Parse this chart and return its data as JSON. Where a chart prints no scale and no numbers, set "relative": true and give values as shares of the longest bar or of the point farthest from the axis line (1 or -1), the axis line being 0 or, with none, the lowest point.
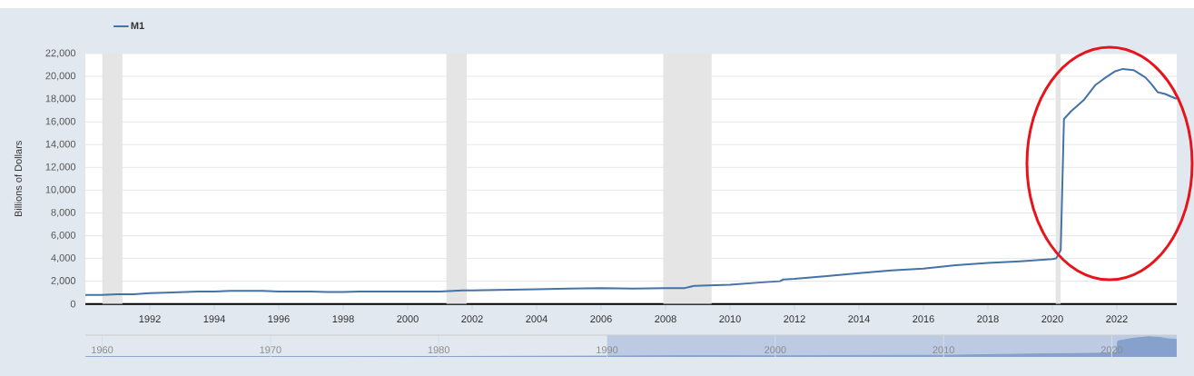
{
  "chart_data": [
    {
      "type": "line",
      "ylabel": "Billions of Dollars",
      "grid": "y",
      "legend": "top left",
      "xlim": [
        1990.0,
        2023.86
      ],
      "ylim": [
        0,
        22000
      ],
      "xticks": [
        1992,
        1994,
        1996,
        1998,
        2000,
        2002,
        2004,
        2006,
        2008,
        2010,
        2012,
        2014,
        2016,
        2018,
        2020,
        2022
      ],
      "yticks": [
        0,
        {
          "value": 2000,
          "label": "2,000"
        },
        {
          "value": 4000,
          "label": "4,000"
        },
        {
          "value": 6000,
          "label": "6,000"
        },
        {
          "value": 8000,
          "label": "8,000"
        },
        {
          "value": 10000,
          "label": "10,000"
        },
        {
          "value": 12000,
          "label": "12,000"
        },
        {
          "value": 14000,
          "label": "14,000"
        },
        {
          "value": 16000,
          "label": "16,000"
        },
        {
          "value": 18000,
          "label": "18,000"
        },
        {
          "value": 20000,
          "label": "20,000"
        },
        {
          "value": 22000,
          "label": "22,000"
        }
      ],
      "bands": [
        {
          "axis": "x",
          "from": 1990.52,
          "to": 1991.15,
          "color": "#e5e5e5"
        },
        {
          "axis": "x",
          "from": 2001.2,
          "to": 2001.83,
          "color": "#e5e5e5"
        },
        {
          "axis": "x",
          "from": 2007.93,
          "to": 2009.43,
          "color": "#e5e5e5"
        },
        {
          "axis": "x",
          "from": 2020.1,
          "to": 2020.26,
          "color": "#e5e5e5"
        }
      ],
      "x": [
        1990.0,
        1990.5,
        1991.0,
        1991.5,
        1992.0,
        1992.5,
        1993.0,
        1993.5,
        1994.0,
        1994.5,
        1995.0,
        1995.5,
        1996.0,
        1996.5,
        1997.0,
        1997.5,
        1998.0,
        1998.5,
        1999.0,
        1999.5,
        2000.0,
        2000.5,
        2001.0,
        2001.7,
        2002.0,
        2003.0,
        2004.0,
        2005.0,
        2006.0,
        2007.0,
        2008.0,
        2008.6,
        2008.9,
        2010.0,
        2011.0,
        2011.55,
        2011.65,
        2012.0,
        2013.0,
        2014.0,
        2015.0,
        2016.0,
        2017.0,
        2018.0,
        2019.0,
        2020.0,
        2020.12,
        2020.26,
        2020.36,
        2020.59,
        2020.97,
        2021.34,
        2021.58,
        2021.95,
        2022.19,
        2022.52,
        2022.89,
        2023.08,
        2023.27,
        2023.5,
        2023.83
      ],
      "series": [
        {
          "name": "M1",
          "color": "#4572a7",
          "values": [
            800,
            800,
            850,
            850,
            950,
            1000,
            1050,
            1100,
            1100,
            1150,
            1150,
            1150,
            1100,
            1100,
            1100,
            1050,
            1050,
            1100,
            1100,
            1100,
            1100,
            1100,
            1100,
            1200,
            1200,
            1250,
            1300,
            1350,
            1400,
            1350,
            1400,
            1400,
            1600,
            1700,
            1900,
            2000,
            2150,
            2200,
            2450,
            2700,
            2950,
            3100,
            3400,
            3600,
            3750,
            3950,
            4000,
            4750,
            16250,
            16950,
            17900,
            19250,
            19750,
            20450,
            20650,
            20550,
            19900,
            19300,
            18600,
            18450,
            18050
          ]
        }
      ]
    },
    {
      "type": "area",
      "relative": true,
      "grid": "x",
      "xlim": [
        1959.0,
        2023.86
      ],
      "xticks": [
        1960,
        1970,
        1980,
        1990,
        2000,
        2010,
        2020
      ],
      "bands": [
        {
          "axis": "x",
          "from": 1990.0,
          "to": 2023.86,
          "color": "#bccae3"
        }
      ],
      "x": [
        1959.0,
        1965.0,
        1970.0,
        1975.0,
        1980.0,
        1985.0,
        1990.0,
        1995.0,
        2000.0,
        2005.0,
        2010.0,
        2015.0,
        2020.12,
        2020.26,
        2020.36,
        2021.34,
        2022.19,
        2022.89,
        2023.27,
        2023.83
      ],
      "series": [
        {
          "color": "#86a1cc",
          "values": [
            0.01,
            0.01,
            0.01,
            0.01,
            0.02,
            0.03,
            0.04,
            0.06,
            0.05,
            0.07,
            0.08,
            0.14,
            0.19,
            0.23,
            0.79,
            0.93,
            1,
            0.96,
            0.9,
            0.87
          ]
        }
      ]
    }
  ]
}
